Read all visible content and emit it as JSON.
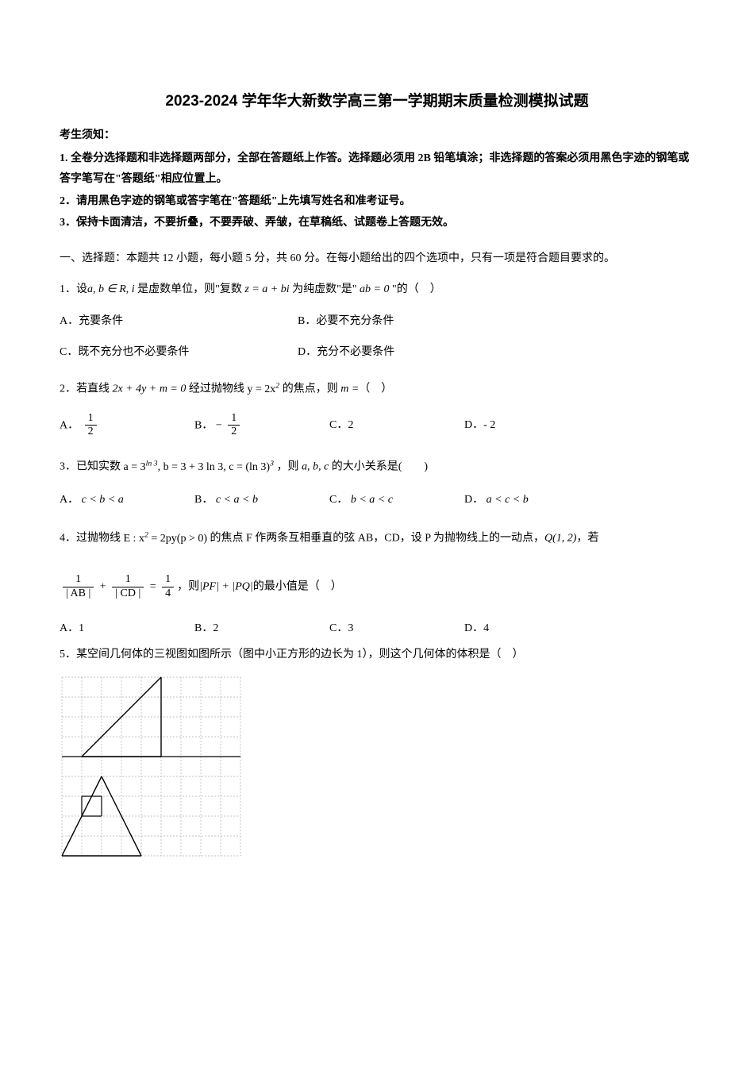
{
  "title": "2023-2024 学年华大新数学高三第一学期期末质量检测模拟试题",
  "instructions_heading": "考生须知：",
  "instructions": [
    "1. 全卷分选择题和非选择题两部分，全部在答题纸上作答。选择题必须用 2B 铅笔填涂；非选择题的答案必须用黑色字迹的钢笔或答字笔写在\"答题纸\"相应位置上。",
    "2．请用黑色字迹的钢笔或答字笔在\"答题纸\"上先填写姓名和准考证号。",
    "3．保持卡面清洁，不要折叠，不要弄破、弄皱，在草稿纸、试题卷上答题无效。"
  ],
  "section1_title": "一、选择题：本题共 12 小题，每小题 5 分，共 60 分。在每小题给出的四个选项中，只有一项是符合题目要求的。",
  "q1": {
    "prefix": "1．设",
    "math1": "a, b ∈ R, i",
    "mid1": " 是虚数单位，则\"复数 ",
    "math2": "z = a + bi",
    "mid2": " 为纯虚数\"是\" ",
    "math3": "ab = 0",
    "suffix": " \"的（　）",
    "choiceA": "A．充要条件",
    "choiceB": "B．必要不充分条件",
    "choiceC": "C．既不充分也不必要条件",
    "choiceD": "D．充分不必要条件"
  },
  "q2": {
    "prefix": "2．若直线 ",
    "math1": "2x + 4y + m = 0",
    "mid1": " 经过抛物线 ",
    "math2": "y = 2x²",
    "mid2": " 的焦点，则 ",
    "math3": "m =",
    "suffix": "（　）",
    "choiceA_label": "A．",
    "choiceA_num": "1",
    "choiceA_den": "2",
    "choiceB_label": "B．",
    "choiceB_neg": "−",
    "choiceB_num": "1",
    "choiceB_den": "2",
    "choiceC": "C．2",
    "choiceD": "D．- 2"
  },
  "q3": {
    "prefix": "3．已知实数 ",
    "math1_a": "a = 3",
    "math1_exp": "ln 3",
    "math1_b": ", b = 3 + 3 ln 3, c = (ln 3)",
    "math1_c_exp": "3",
    "mid1": " ，则 ",
    "math2": "a, b, c",
    "suffix": " 的大小关系是(　　)",
    "choiceA": "A．",
    "choiceA_math": "c < b < a",
    "choiceB": "B．",
    "choiceB_math": "c < a < b",
    "choiceC": "C．",
    "choiceC_math": "b < a < c",
    "choiceD": "D．",
    "choiceD_math": "a < c < b"
  },
  "q4": {
    "prefix": "4．过抛物线 ",
    "math1": "E : x² = 2py (p > 0)",
    "mid1": " 的焦点 F 作两条互相垂直的弦 AB，CD，设 P 为抛物线上的一动点，",
    "math2": "Q(1, 2)",
    "mid2": "，若",
    "frac1_num": "1",
    "frac1_den": "| AB |",
    "plus": " + ",
    "frac2_num": "1",
    "frac2_den": "| CD |",
    "eq": " = ",
    "frac3_num": "1",
    "frac3_den": "4",
    "mid3": "，则",
    "math3": "|PF| + |PQ|",
    "suffix": "的最小值是（　）",
    "choiceA": "A．1",
    "choiceB": "B．2",
    "choiceC": "C．3",
    "choiceD": "D．4"
  },
  "q5": {
    "text": "5．某空间几何体的三视图如图所示（图中小正方形的边长为 1），则这个几何体的体积是（　）"
  },
  "figure": {
    "background_color": "#ffffff",
    "grid_color": "#b0b0b0",
    "line_color": "#000000",
    "cell": 25,
    "cols": 9,
    "rows": 9,
    "sep_row": 4,
    "top_triangle": {
      "left_col": 1,
      "right_col": 5,
      "top_col": 5,
      "base_row": 4,
      "apex_row": 0
    },
    "bottom_triangle": {
      "left_col": 0,
      "right_col": 4,
      "top_col": 2,
      "base_row": 9,
      "apex_row": 5
    },
    "small_square": {
      "col0": 1,
      "row0": 6,
      "col1": 2,
      "row1": 7
    }
  }
}
